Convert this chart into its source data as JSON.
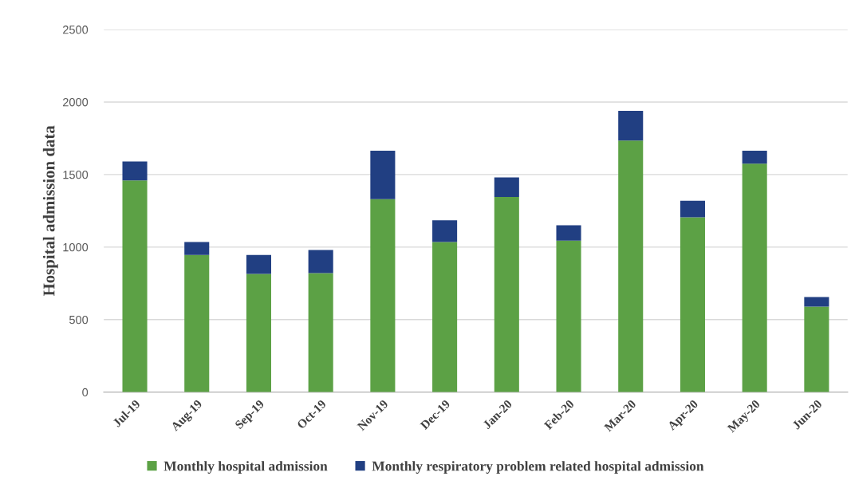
{
  "chart_data": {
    "type": "bar",
    "stacked": true,
    "ylabel": "Hospital admission data",
    "categories": [
      "Jul-19",
      "Aug-19",
      "Sep-19",
      "Oct-19",
      "Nov-19",
      "Dec-19",
      "Jan-20",
      "Feb-20",
      "Mar-20",
      "Apr-20",
      "May-20",
      "Jun-20"
    ],
    "series": [
      {
        "name": "Monthly hospital admission",
        "color": "#5ca145",
        "values": [
          1460,
          945,
          815,
          820,
          1330,
          1035,
          1345,
          1045,
          1735,
          1205,
          1575,
          590
        ]
      },
      {
        "name": "Monthly respiratory problem related hospital admission",
        "color": "#213f82",
        "values": [
          130,
          90,
          130,
          160,
          335,
          150,
          135,
          105,
          205,
          115,
          90,
          65
        ]
      }
    ],
    "ylim": [
      0,
      2500
    ],
    "yticks": [
      0,
      500,
      1000,
      1500,
      2000,
      2500
    ],
    "grid": "y",
    "legend": "bottom"
  }
}
